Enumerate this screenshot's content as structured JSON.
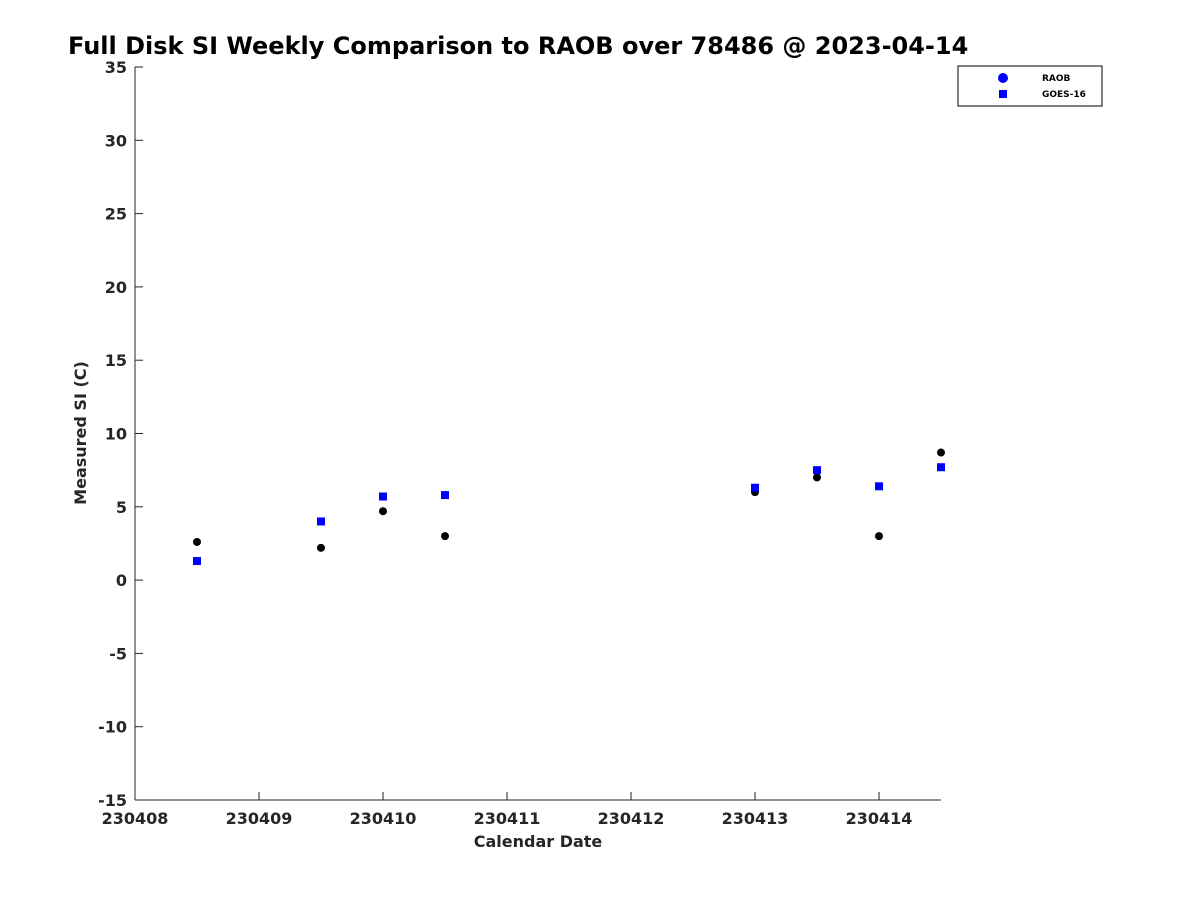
{
  "chart_data": {
    "type": "scatter",
    "title": "Full Disk SI Weekly Comparison to RAOB over 78486 @ 2023-04-14",
    "xlabel": "Calendar Date",
    "ylabel": "Measured SI (C)",
    "xlim": [
      230408,
      230414.5
    ],
    "ylim": [
      -15,
      35
    ],
    "x_ticks": [
      230408,
      230409,
      230410,
      230411,
      230412,
      230413,
      230414
    ],
    "x_tick_labels": [
      "230408",
      "230409",
      "230410",
      "230411",
      "230412",
      "230413",
      "230414"
    ],
    "y_ticks": [
      -15,
      -10,
      -5,
      0,
      5,
      10,
      15,
      20,
      25,
      30,
      35
    ],
    "y_tick_labels": [
      "-15",
      "-10",
      "-5",
      "0",
      "5",
      "10",
      "15",
      "20",
      "25",
      "30",
      "35"
    ],
    "grid": false,
    "legend_position": "top-right",
    "series": [
      {
        "name": "RAOB",
        "marker": "circle",
        "legend_color": "#0000ff",
        "point_color": "#000000",
        "x": [
          230408.5,
          230409.5,
          230410.0,
          230410.5,
          230413.0,
          230413.5,
          230414.0,
          230414.5
        ],
        "y": [
          2.6,
          2.2,
          4.7,
          3.0,
          6.0,
          7.0,
          3.0,
          8.7
        ]
      },
      {
        "name": "GOES-16",
        "marker": "square",
        "legend_color": "#0000ff",
        "point_color": "#0000ff",
        "x": [
          230408.5,
          230409.5,
          230410.0,
          230410.5,
          230413.0,
          230413.5,
          230414.0,
          230414.5
        ],
        "y": [
          1.3,
          4.0,
          5.7,
          5.8,
          6.3,
          7.5,
          6.4,
          7.7
        ]
      }
    ]
  }
}
